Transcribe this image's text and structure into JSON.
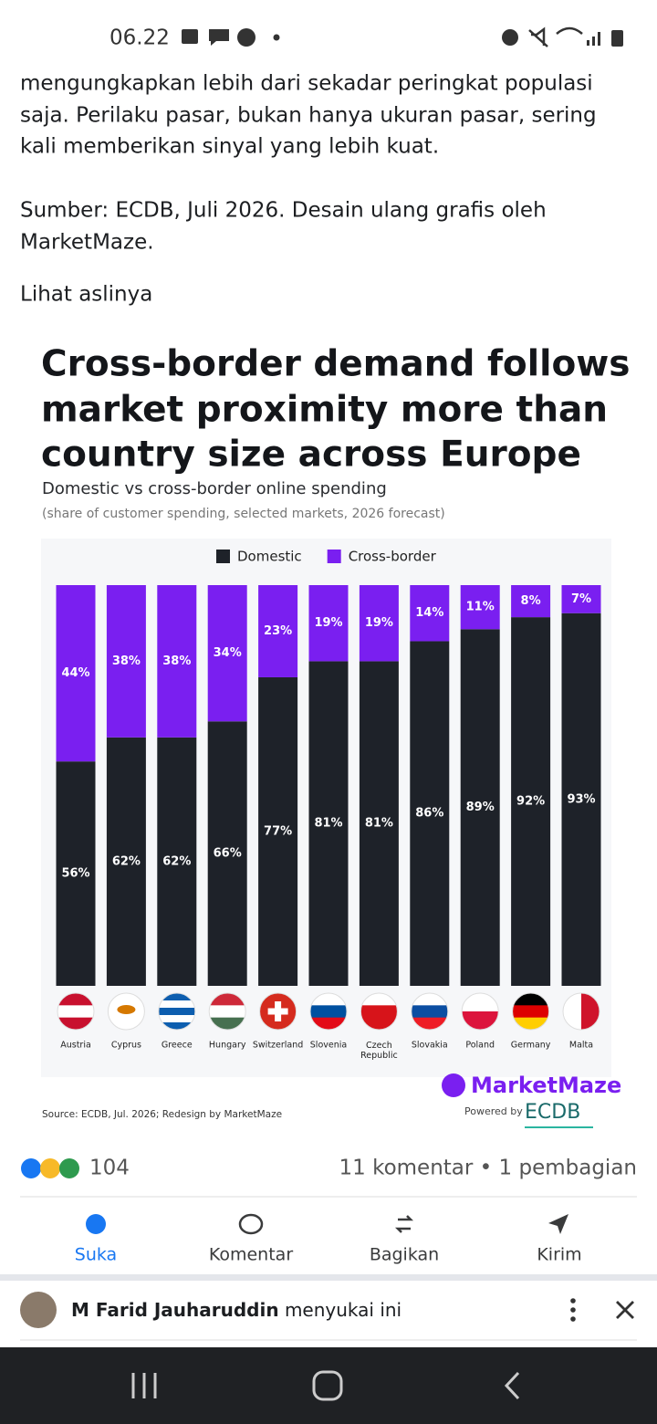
{
  "status_bar": {
    "time": "06.22"
  },
  "post": {
    "lines": [
      "mengungkapkan lebih dari sekadar peringkat populasi",
      "saja. Perilaku pasar, bukan hanya ukuran pasar, sering",
      "kali memberikan sinyal yang lebih kuat."
    ],
    "source_lines": [
      "Sumber: ECDB, Juli 2026. Desain ulang grafis oleh",
      "MarketMaze."
    ],
    "see_original": "Lihat aslinya"
  },
  "chart_data": {
    "type": "stacked-bar",
    "title": [
      "Cross-border demand follows",
      "market proximity more than",
      "country size across Europe"
    ],
    "subtitle": "Domestic vs cross-border online spending",
    "note": "(share of customer spending, selected markets, 2026 forecast)",
    "categories": [
      "Austria",
      "Cyprus",
      "Greece",
      "Hungary",
      "Switzerland",
      "Slovenia",
      "Czech Republic",
      "Slovakia",
      "Poland",
      "Germany",
      "Malta"
    ],
    "series": [
      {
        "name": "Domestic",
        "color": "#1e2229",
        "values": [
          56,
          62,
          62,
          66,
          77,
          81,
          81,
          86,
          89,
          92,
          93
        ],
        "value_labels": [
          "56%",
          "62%",
          "62%",
          "66%",
          "77%",
          "81%",
          "81%",
          "86%",
          "89%",
          "92%",
          "93%"
        ]
      },
      {
        "name": "Cross-border",
        "color": "#7a1ff0",
        "values": [
          44,
          38,
          38,
          34,
          23,
          19,
          19,
          14,
          11,
          8,
          7
        ],
        "value_labels": [
          "44%",
          "38%",
          "38%",
          "34%",
          "23%",
          "19%",
          "19%",
          "14%",
          "11%",
          "8%",
          "7%"
        ]
      }
    ],
    "ylim": [
      0,
      100
    ],
    "source": "Source: ECDB, Jul. 2026; Redesign by MarketMaze",
    "brand": "MarketMaze",
    "powered_by": "Powered by",
    "partner": "ECDB"
  },
  "reactions": {
    "count": "104",
    "stats": "11 komentar • 1 pembagian"
  },
  "actions": [
    "Suka",
    "Komentar",
    "Bagikan",
    "Kirim"
  ],
  "notification": {
    "name": "M Farid Jauharuddin",
    "text": "menyukai ini"
  }
}
